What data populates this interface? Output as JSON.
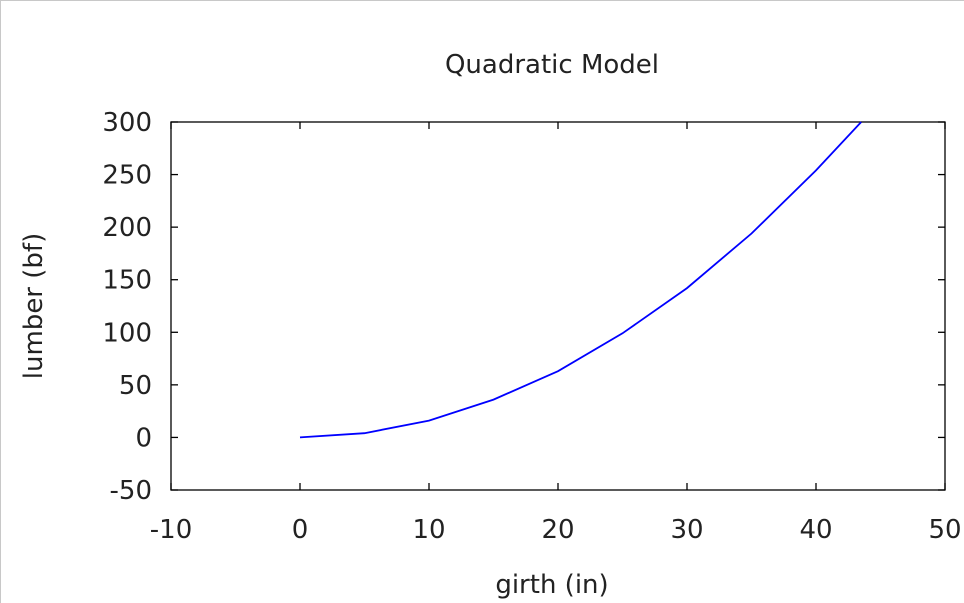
{
  "chart_data": {
    "type": "line",
    "title": "Quadratic Model",
    "xlabel": "girth (in)",
    "ylabel": "lumber (bf)",
    "xlim": [
      -10,
      50
    ],
    "ylim": [
      -50,
      300
    ],
    "xticks": [
      -10,
      0,
      10,
      20,
      30,
      40,
      50
    ],
    "yticks": [
      -50,
      0,
      50,
      100,
      150,
      200,
      250,
      300
    ],
    "grid": false,
    "legend": "none",
    "series": [
      {
        "color": "#0000ff",
        "x": [
          0,
          5,
          10,
          15,
          20,
          25,
          30,
          35,
          40,
          43.5
        ],
        "y": [
          0,
          4,
          16,
          36,
          63,
          99,
          142,
          194,
          254,
          300
        ]
      }
    ]
  }
}
